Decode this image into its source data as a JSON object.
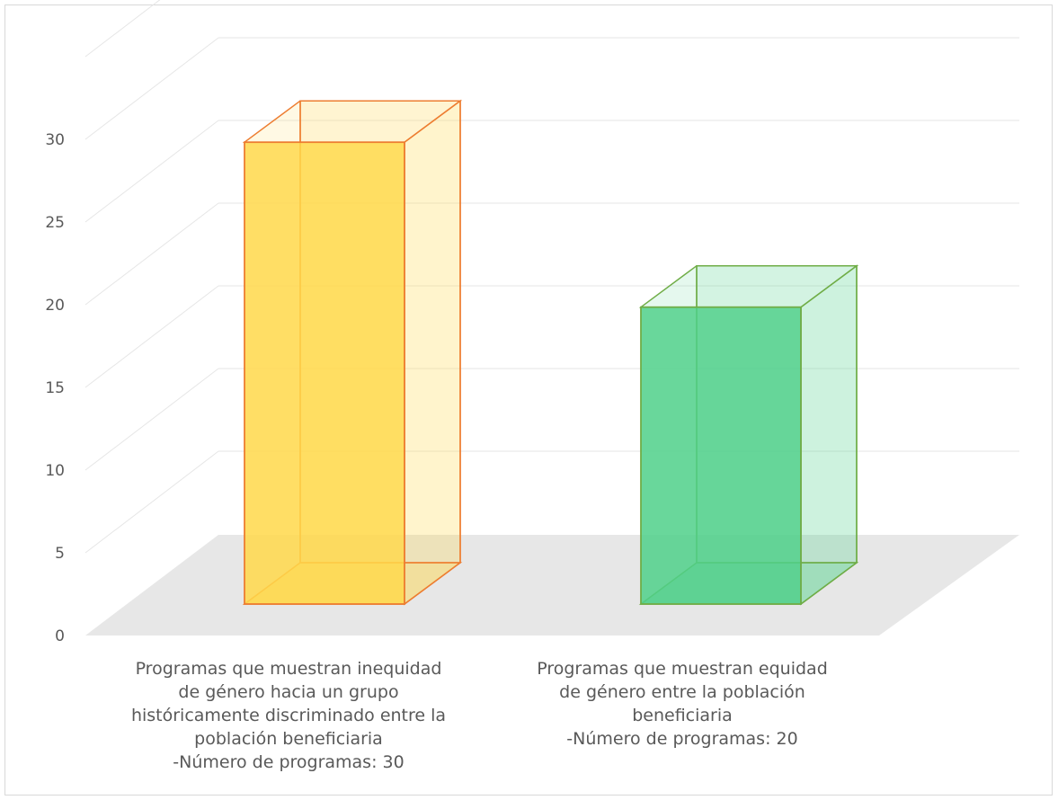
{
  "chart_data": {
    "type": "bar",
    "title": "",
    "xlabel": "",
    "ylabel": "",
    "ylim": [
      0,
      30
    ],
    "yticks": [
      "0",
      "5",
      "10",
      "15",
      "20",
      "25",
      "30"
    ],
    "grid": true,
    "legend": "none",
    "categories": [
      "Programas que muestran inequidad de género hacia un grupo históricamente discriminado entre la población beneficiaria -Número de programas: 30",
      "Programas que muestran equidad de género entre la población beneficiaria -Número de programas: 20"
    ],
    "category_label_lines": [
      [
        "Programas que muestran inequidad",
        "de género hacia un grupo",
        "históricamente discriminado entre la",
        "población beneficiaria",
        "-Número de programas: 30"
      ],
      [
        "Programas que muestran equidad",
        "de género entre la población",
        "beneficiaria",
        "-Número de programas: 20"
      ]
    ],
    "values": [
      30,
      20
    ],
    "colors": {
      "bar1_fill": "#ffd84a",
      "bar1_edge": "#ed7d31",
      "bar2_fill": "#4fd08a",
      "bar2_edge": "#70ad47",
      "floor": "#e7e7e7",
      "grid": "#e6e6e6",
      "text": "#595959"
    }
  }
}
